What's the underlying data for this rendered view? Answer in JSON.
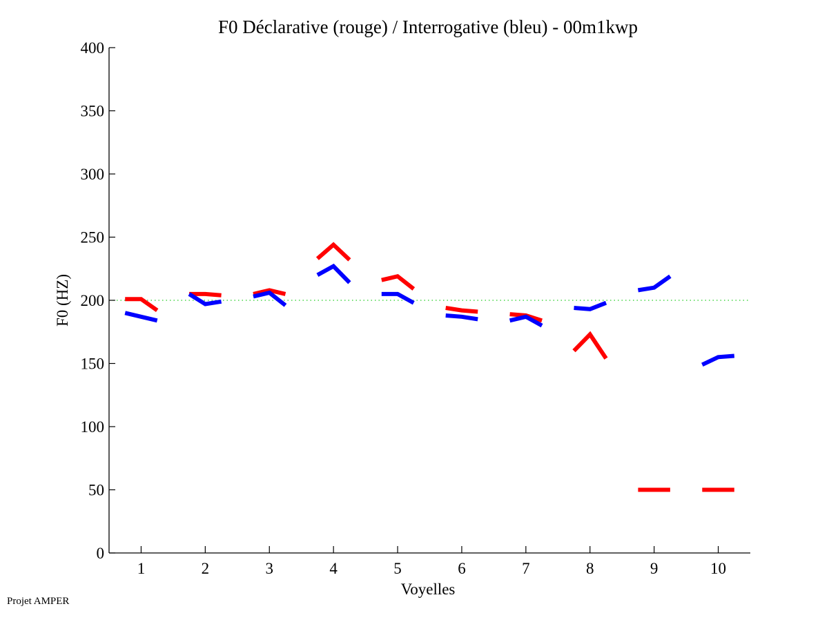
{
  "chart_data": {
    "type": "line",
    "title": "F0 Déclarative (rouge) / Interrogative (bleu) - 00m1kwp",
    "xlabel": "Voyelles",
    "ylabel": "F0 (HZ)",
    "ylim": [
      0,
      400
    ],
    "xlim": [
      0.5,
      10.5
    ],
    "yticks": [
      "0",
      "50",
      "100",
      "150",
      "200",
      "250",
      "300",
      "350",
      "400"
    ],
    "ytick_values": [
      0,
      50,
      100,
      150,
      200,
      250,
      300,
      350,
      400
    ],
    "xticks": [
      "1",
      "2",
      "3",
      "4",
      "5",
      "6",
      "7",
      "8",
      "9",
      "10"
    ],
    "xtick_values": [
      1,
      2,
      3,
      4,
      5,
      6,
      7,
      8,
      9,
      10
    ],
    "reference_line": {
      "y": 200,
      "color": "#22cc22",
      "style": "dotted"
    },
    "point_offsets": [
      -0.25,
      0,
      0.25
    ],
    "series": [
      {
        "name": "Déclarative (rouge)",
        "color": "#ff0000",
        "segments": [
          {
            "vowel": 1,
            "values": [
              201,
              201,
              192
            ]
          },
          {
            "vowel": 2,
            "values": [
              205,
              205,
              204
            ]
          },
          {
            "vowel": 3,
            "values": [
              205,
              208,
              205
            ]
          },
          {
            "vowel": 4,
            "values": [
              233,
              244,
              232
            ]
          },
          {
            "vowel": 5,
            "values": [
              216,
              219,
              209
            ]
          },
          {
            "vowel": 6,
            "values": [
              194,
              192,
              191
            ]
          },
          {
            "vowel": 7,
            "values": [
              189,
              188,
              184
            ]
          },
          {
            "vowel": 8,
            "values": [
              160,
              173,
              154
            ]
          },
          {
            "vowel": 9,
            "values": [
              50,
              50,
              50
            ]
          },
          {
            "vowel": 10,
            "values": [
              50,
              50,
              50
            ]
          }
        ]
      },
      {
        "name": "Interrogative (bleu)",
        "color": "#0000ff",
        "segments": [
          {
            "vowel": 1,
            "values": [
              190,
              187,
              184
            ]
          },
          {
            "vowel": 2,
            "values": [
              205,
              197,
              199
            ]
          },
          {
            "vowel": 3,
            "values": [
              203,
              206,
              196
            ]
          },
          {
            "vowel": 4,
            "values": [
              220,
              227,
              214
            ]
          },
          {
            "vowel": 5,
            "values": [
              205,
              205,
              198
            ]
          },
          {
            "vowel": 6,
            "values": [
              188,
              187,
              185
            ]
          },
          {
            "vowel": 7,
            "values": [
              184,
              187,
              180
            ]
          },
          {
            "vowel": 8,
            "values": [
              194,
              193,
              198
            ]
          },
          {
            "vowel": 9,
            "values": [
              208,
              210,
              219
            ]
          },
          {
            "vowel": 10,
            "values": [
              149,
              155,
              156
            ]
          }
        ]
      }
    ]
  },
  "footer": {
    "text": "Projet AMPER"
  }
}
